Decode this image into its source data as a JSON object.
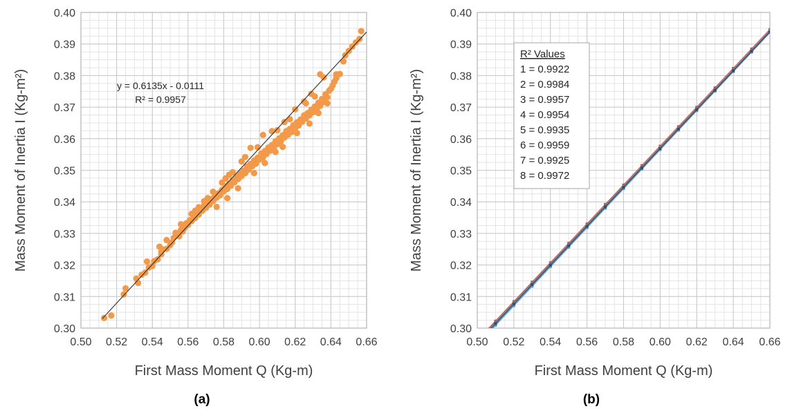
{
  "captions": [
    "(a)",
    "(b)"
  ],
  "colors": {
    "scatter": "#f2994a",
    "trend": "#3a3a3a",
    "grid_major": "#c8c8c8",
    "grid_minor": "#e4e4e4",
    "series": [
      "#5b9bd5",
      "#c0504d",
      "#9bbb59",
      "#8064a2",
      "#4bacc6",
      "#f79646",
      "#7f7f7f",
      "#2c4d75"
    ]
  },
  "chart_data": [
    {
      "type": "scatter",
      "xlabel": "First Mass Moment Q (Kg-m)",
      "ylabel": "Mass Moment of Inertia I (Kg-m²)",
      "xlim": [
        0.5,
        0.66
      ],
      "ylim": [
        0.3,
        0.4
      ],
      "xticks": [
        "0.50",
        "0.52",
        "0.54",
        "0.56",
        "0.58",
        "0.60",
        "0.62",
        "0.64",
        "0.66"
      ],
      "yticks": [
        "0.30",
        "0.31",
        "0.32",
        "0.33",
        "0.34",
        "0.35",
        "0.36",
        "0.37",
        "0.38",
        "0.39",
        "0.40"
      ],
      "grid": true,
      "trendline": {
        "slope": 0.6135,
        "intercept": -0.0111,
        "x_range": [
          0.512,
          0.66
        ]
      },
      "annotation": {
        "equation": "y = 0.6135x - 0.0111",
        "r2": "R² = 0.9957"
      },
      "points": [
        [
          0.513,
          0.3032
        ],
        [
          0.517,
          0.304
        ],
        [
          0.524,
          0.3107
        ],
        [
          0.525,
          0.3126
        ],
        [
          0.531,
          0.3157
        ],
        [
          0.532,
          0.3143
        ],
        [
          0.534,
          0.3169
        ],
        [
          0.536,
          0.3176
        ],
        [
          0.538,
          0.3192
        ],
        [
          0.54,
          0.3197
        ],
        [
          0.541,
          0.3212
        ],
        [
          0.543,
          0.3218
        ],
        [
          0.545,
          0.3234
        ],
        [
          0.546,
          0.3249
        ],
        [
          0.548,
          0.3251
        ],
        [
          0.55,
          0.3263
        ],
        [
          0.551,
          0.3272
        ],
        [
          0.552,
          0.3286
        ],
        [
          0.554,
          0.3295
        ],
        [
          0.555,
          0.3291
        ],
        [
          0.556,
          0.3311
        ],
        [
          0.557,
          0.3306
        ],
        [
          0.558,
          0.3317
        ],
        [
          0.559,
          0.3332
        ],
        [
          0.56,
          0.3327
        ],
        [
          0.561,
          0.3342
        ],
        [
          0.562,
          0.3339
        ],
        [
          0.563,
          0.3357
        ],
        [
          0.564,
          0.3349
        ],
        [
          0.565,
          0.3367
        ],
        [
          0.566,
          0.336
        ],
        [
          0.567,
          0.3377
        ],
        [
          0.568,
          0.3372
        ],
        [
          0.569,
          0.3389
        ],
        [
          0.57,
          0.3381
        ],
        [
          0.571,
          0.3398
        ],
        [
          0.572,
          0.3391
        ],
        [
          0.573,
          0.3409
        ],
        [
          0.574,
          0.3402
        ],
        [
          0.575,
          0.3418
        ],
        [
          0.576,
          0.3413
        ],
        [
          0.577,
          0.3427
        ],
        [
          0.578,
          0.3421
        ],
        [
          0.579,
          0.3438
        ],
        [
          0.58,
          0.3433
        ],
        [
          0.581,
          0.3449
        ],
        [
          0.582,
          0.3441
        ],
        [
          0.583,
          0.3458
        ],
        [
          0.584,
          0.3451
        ],
        [
          0.585,
          0.3469
        ],
        [
          0.586,
          0.3462
        ],
        [
          0.587,
          0.3478
        ],
        [
          0.588,
          0.3472
        ],
        [
          0.589,
          0.3489
        ],
        [
          0.59,
          0.3482
        ],
        [
          0.591,
          0.3499
        ],
        [
          0.592,
          0.3491
        ],
        [
          0.593,
          0.3512
        ],
        [
          0.594,
          0.3502
        ],
        [
          0.595,
          0.352
        ],
        [
          0.596,
          0.3513
        ],
        [
          0.597,
          0.3531
        ],
        [
          0.598,
          0.3521
        ],
        [
          0.599,
          0.354
        ],
        [
          0.6,
          0.3534
        ],
        [
          0.601,
          0.3553
        ],
        [
          0.602,
          0.3541
        ],
        [
          0.603,
          0.3561
        ],
        [
          0.604,
          0.3552
        ],
        [
          0.605,
          0.3572
        ],
        [
          0.606,
          0.3562
        ],
        [
          0.607,
          0.358
        ],
        [
          0.608,
          0.3571
        ],
        [
          0.609,
          0.3592
        ],
        [
          0.61,
          0.3583
        ],
        [
          0.611,
          0.3601
        ],
        [
          0.612,
          0.3592
        ],
        [
          0.613,
          0.3611
        ],
        [
          0.614,
          0.3604
        ],
        [
          0.615,
          0.3624
        ],
        [
          0.616,
          0.3612
        ],
        [
          0.617,
          0.3631
        ],
        [
          0.618,
          0.3621
        ],
        [
          0.619,
          0.3643
        ],
        [
          0.62,
          0.3634
        ],
        [
          0.621,
          0.3652
        ],
        [
          0.622,
          0.3642
        ],
        [
          0.623,
          0.3661
        ],
        [
          0.624,
          0.3654
        ],
        [
          0.625,
          0.3674
        ],
        [
          0.626,
          0.3664
        ],
        [
          0.627,
          0.3681
        ],
        [
          0.628,
          0.3674
        ],
        [
          0.629,
          0.3692
        ],
        [
          0.63,
          0.3684
        ],
        [
          0.631,
          0.3702
        ],
        [
          0.632,
          0.3692
        ],
        [
          0.633,
          0.3714
        ],
        [
          0.634,
          0.3704
        ],
        [
          0.635,
          0.3726
        ],
        [
          0.636,
          0.3716
        ],
        [
          0.637,
          0.3741
        ],
        [
          0.638,
          0.3731
        ],
        [
          0.639,
          0.3752
        ],
        [
          0.64,
          0.3758
        ],
        [
          0.641,
          0.3769
        ],
        [
          0.642,
          0.3781
        ],
        [
          0.643,
          0.3792
        ],
        [
          0.645,
          0.3805
        ],
        [
          0.647,
          0.3845
        ],
        [
          0.648,
          0.3864
        ],
        [
          0.65,
          0.3878
        ],
        [
          0.652,
          0.3892
        ],
        [
          0.654,
          0.3905
        ],
        [
          0.656,
          0.3916
        ],
        [
          0.657,
          0.3941
        ],
        [
          0.629,
          0.3742
        ],
        [
          0.636,
          0.3794
        ],
        [
          0.634,
          0.3804
        ],
        [
          0.625,
          0.3718
        ],
        [
          0.614,
          0.3653
        ],
        [
          0.617,
          0.3662
        ],
        [
          0.602,
          0.3612
        ],
        [
          0.595,
          0.3571
        ],
        [
          0.585,
          0.3494
        ],
        [
          0.579,
          0.3461
        ],
        [
          0.571,
          0.3412
        ],
        [
          0.566,
          0.3383
        ],
        [
          0.562,
          0.3362
        ],
        [
          0.556,
          0.3329
        ],
        [
          0.548,
          0.3279
        ],
        [
          0.544,
          0.3258
        ],
        [
          0.537,
          0.3211
        ],
        [
          0.582,
          0.3412
        ],
        [
          0.576,
          0.3384
        ],
        [
          0.588,
          0.3443
        ],
        [
          0.597,
          0.3491
        ],
        [
          0.603,
          0.3523
        ],
        [
          0.609,
          0.3558
        ],
        [
          0.613,
          0.3574
        ],
        [
          0.621,
          0.3618
        ],
        [
          0.628,
          0.3648
        ],
        [
          0.633,
          0.3681
        ],
        [
          0.638,
          0.3712
        ],
        [
          0.643,
          0.3804
        ],
        [
          0.631,
          0.3734
        ],
        [
          0.607,
          0.3624
        ],
        [
          0.592,
          0.3542
        ],
        [
          0.583,
          0.3486
        ],
        [
          0.574,
          0.3432
        ],
        [
          0.564,
          0.3372
        ],
        [
          0.553,
          0.3302
        ],
        [
          0.545,
          0.3241
        ],
        [
          0.599,
          0.3573
        ],
        [
          0.61,
          0.3627
        ],
        [
          0.62,
          0.3693
        ],
        [
          0.626,
          0.3712
        ],
        [
          0.59,
          0.3528
        ],
        [
          0.581,
          0.3474
        ],
        [
          0.569,
          0.3402
        ]
      ]
    },
    {
      "type": "line",
      "xlabel": "First Mass Moment Q (Kg-m)",
      "ylabel": "Mass Moment of Inertia I (Kg-m²)",
      "xlim": [
        0.5,
        0.66
      ],
      "ylim": [
        0.3,
        0.4
      ],
      "xticks": [
        "0.50",
        "0.52",
        "0.54",
        "0.56",
        "0.58",
        "0.60",
        "0.62",
        "0.64",
        "0.66"
      ],
      "yticks": [
        "0.30",
        "0.31",
        "0.32",
        "0.33",
        "0.34",
        "0.35",
        "0.36",
        "0.37",
        "0.38",
        "0.39",
        "0.40"
      ],
      "grid": true,
      "x": [
        0.51,
        0.52,
        0.53,
        0.54,
        0.55,
        0.56,
        0.57,
        0.58,
        0.59,
        0.6,
        0.61,
        0.62,
        0.63,
        0.64,
        0.65,
        0.66
      ],
      "series": [
        {
          "slope": 0.6182,
          "intercept": -0.0144
        },
        {
          "slope": 0.6156,
          "intercept": -0.0117
        },
        {
          "slope": 0.615,
          "intercept": -0.0119
        },
        {
          "slope": 0.6165,
          "intercept": -0.0131
        },
        {
          "slope": 0.6171,
          "intercept": -0.0134
        },
        {
          "slope": 0.6158,
          "intercept": -0.0125
        },
        {
          "slope": 0.6147,
          "intercept": -0.0116
        },
        {
          "slope": 0.616,
          "intercept": -0.0127
        }
      ],
      "legend": {
        "title": "R² Values",
        "position": "upper-left",
        "entries": [
          "1 = 0.9922",
          "2 = 0.9984",
          "3 = 0.9957",
          "4 = 0.9954",
          "5 = 0.9935",
          "6 = 0.9959",
          "7 = 0.9925",
          "8 = 0.9972"
        ]
      }
    }
  ]
}
